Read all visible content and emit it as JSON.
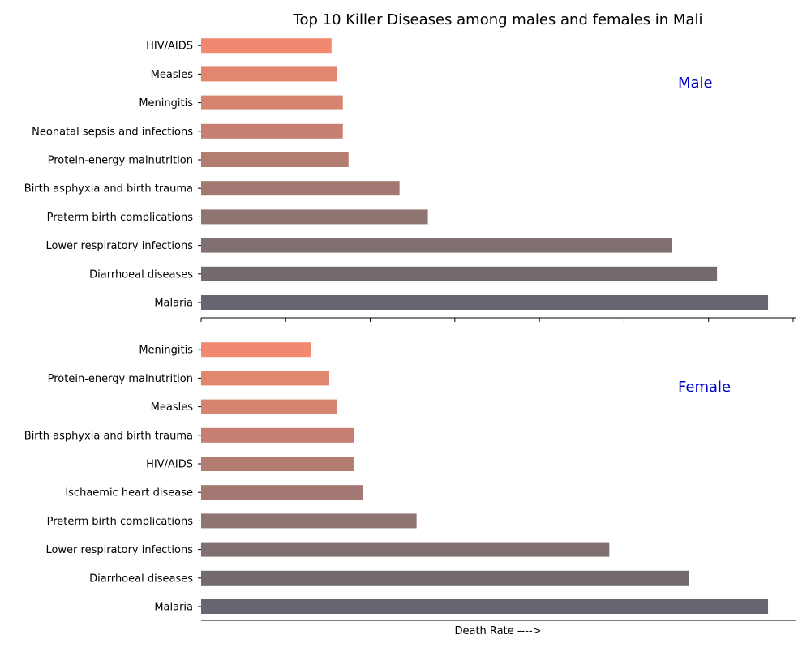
{
  "chart_data": {
    "type": "bar",
    "orientation": "horizontal",
    "title": "Top 10 Killer Diseases among males and females in Mali",
    "xlabel": "Death Rate ---->",
    "xlim": [
      0,
      105
    ],
    "panels": [
      {
        "label": "Male",
        "categories": [
          "Malaria",
          "Diarrhoeal diseases",
          "Lower respiratory infections",
          "Preterm birth complications",
          "Birth asphyxia and birth trauma",
          "Protein-energy malnutrition",
          "Neonatal sepsis and infections",
          "Meningitis",
          "Measles",
          "HIV/AIDS"
        ],
        "values": [
          100,
          91,
          83,
          40,
          35,
          26,
          25,
          25,
          24,
          23
        ]
      },
      {
        "label": "Female",
        "categories": [
          "Malaria",
          "Diarrhoeal diseases",
          "Lower respiratory infections",
          "Preterm birth complications",
          "Ischaemic heart disease",
          "HIV/AIDS",
          "Birth asphyxia and birth trauma",
          "Measles",
          "Protein-energy malnutrition",
          "Meningitis"
        ],
        "values": [
          100,
          86,
          72,
          38,
          28.6,
          27,
          27,
          24,
          22.6,
          19.4
        ]
      }
    ],
    "colors": [
      "#66656f",
      "#736a70",
      "#817071",
      "#8f7572",
      "#a37873",
      "#b47d71",
      "#c67f71",
      "#d6836f",
      "#e28670",
      "#f0896f"
    ],
    "grid": false,
    "legend": "none"
  }
}
